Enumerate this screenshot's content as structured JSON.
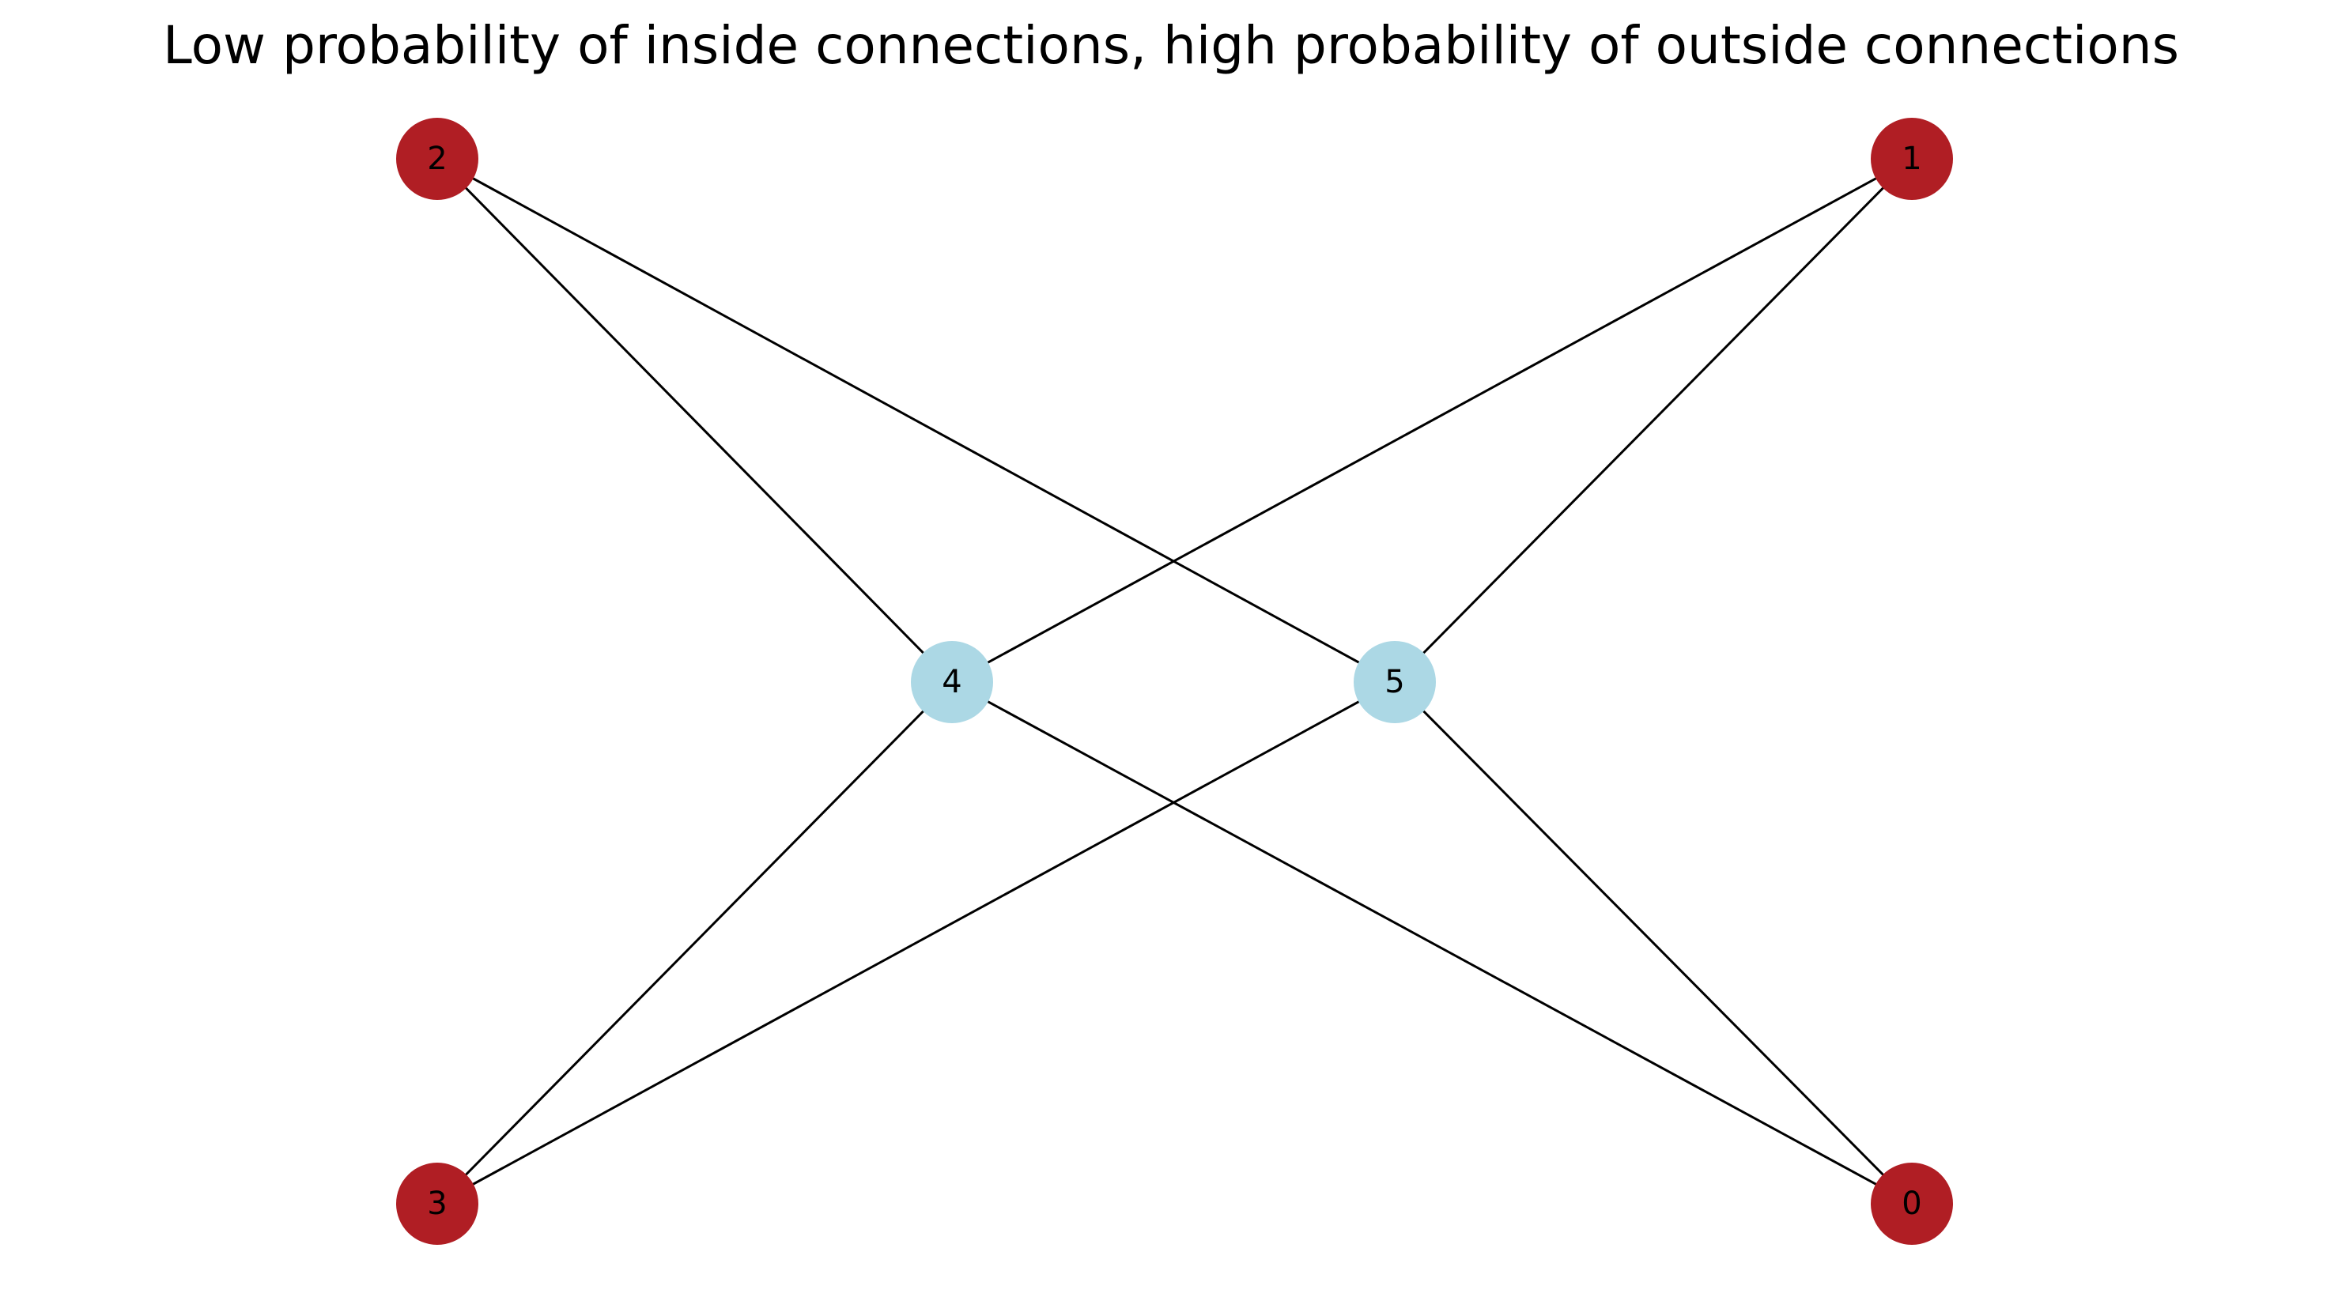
{
  "title": "Low probability of inside connections, high probability of outside connections",
  "colors": {
    "outer_node": "#b01e24",
    "inner_node": "#acd8e5",
    "edge": "#000000",
    "background": "#ffffff"
  },
  "nodes": [
    {
      "id": "0",
      "label": "0",
      "group": "outer"
    },
    {
      "id": "1",
      "label": "1",
      "group": "outer"
    },
    {
      "id": "2",
      "label": "2",
      "group": "outer"
    },
    {
      "id": "3",
      "label": "3",
      "group": "outer"
    },
    {
      "id": "4",
      "label": "4",
      "group": "inner"
    },
    {
      "id": "5",
      "label": "5",
      "group": "inner"
    }
  ],
  "edges": [
    [
      "2",
      "4"
    ],
    [
      "2",
      "5"
    ],
    [
      "1",
      "4"
    ],
    [
      "1",
      "5"
    ],
    [
      "3",
      "4"
    ],
    [
      "3",
      "5"
    ],
    [
      "0",
      "4"
    ],
    [
      "0",
      "5"
    ]
  ]
}
